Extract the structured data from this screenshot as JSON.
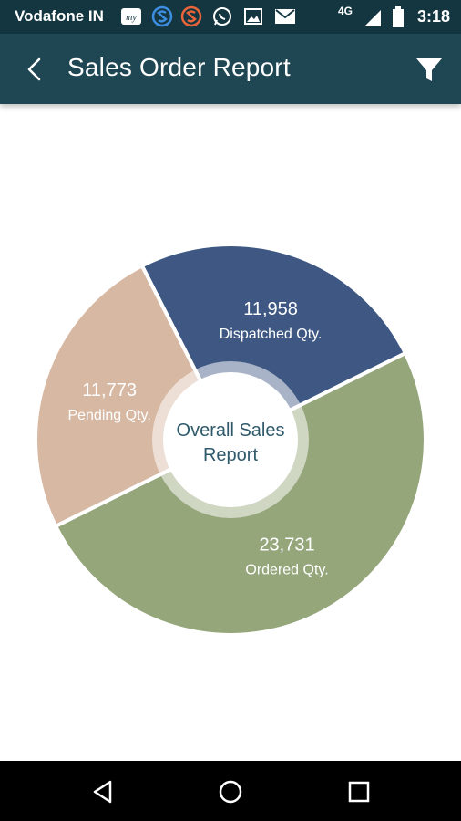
{
  "status_bar": {
    "carrier": "Vodafone IN",
    "network": "4G",
    "time": "3:18",
    "icons": [
      "my-vodafone-icon",
      "s-app-blue-icon",
      "s-app-orange-icon",
      "whatsapp-icon",
      "gallery-icon",
      "gmail-icon",
      "signal-icon",
      "battery-icon"
    ]
  },
  "app_bar": {
    "title": "Sales Order Report",
    "back_icon": "chevron-left-icon",
    "filter_icon": "filter-icon",
    "background": "#1f4653"
  },
  "chart_data": {
    "type": "pie",
    "center_label_line1": "Overall Sales",
    "center_label_line2": "Report",
    "slices": [
      {
        "label": "Dispatched Qty.",
        "value": 11958,
        "display": "11,958",
        "color": "#3e5883"
      },
      {
        "label": "Ordered Qty.",
        "value": 23731,
        "display": "23,731",
        "color": "#95a67b"
      },
      {
        "label": "Pending Qty.",
        "value": 11773,
        "display": "11,773",
        "color": "#d7b8a3"
      }
    ]
  },
  "nav_bar": {
    "buttons": [
      "back-triangle-icon",
      "home-circle-icon",
      "recents-square-icon"
    ]
  }
}
